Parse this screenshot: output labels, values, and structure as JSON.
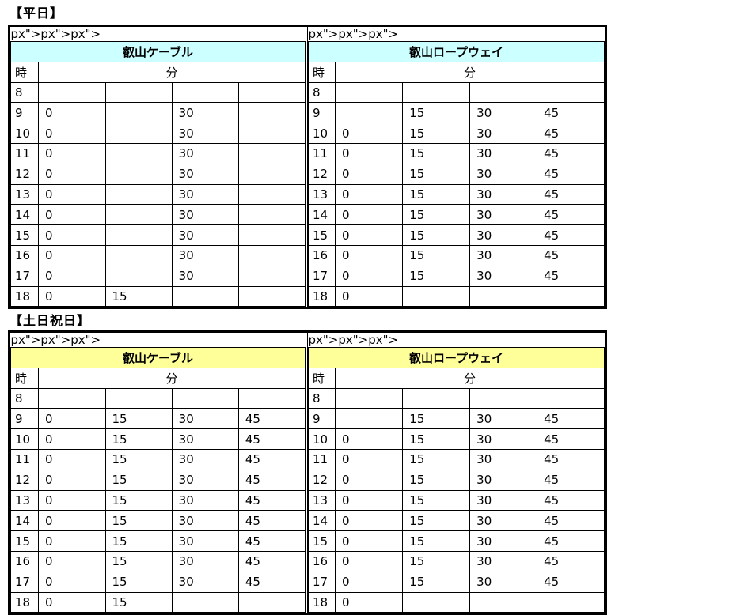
{
  "sections": [
    {
      "title": "【平日】",
      "header_color": "#ccffff",
      "tables": [
        {
          "name": "叡山ケーブル",
          "hour_label": "時",
          "minute_label": "分",
          "rows": [
            {
              "hour": "8",
              "minutes": [
                "",
                "",
                "",
                ""
              ]
            },
            {
              "hour": "9",
              "minutes": [
                "0",
                "",
                "30",
                ""
              ]
            },
            {
              "hour": "10",
              "minutes": [
                "0",
                "",
                "30",
                ""
              ]
            },
            {
              "hour": "11",
              "minutes": [
                "0",
                "",
                "30",
                ""
              ]
            },
            {
              "hour": "12",
              "minutes": [
                "0",
                "",
                "30",
                ""
              ]
            },
            {
              "hour": "13",
              "minutes": [
                "0",
                "",
                "30",
                ""
              ]
            },
            {
              "hour": "14",
              "minutes": [
                "0",
                "",
                "30",
                ""
              ]
            },
            {
              "hour": "15",
              "minutes": [
                "0",
                "",
                "30",
                ""
              ]
            },
            {
              "hour": "16",
              "minutes": [
                "0",
                "",
                "30",
                ""
              ]
            },
            {
              "hour": "17",
              "minutes": [
                "0",
                "",
                "30",
                ""
              ]
            },
            {
              "hour": "18",
              "minutes": [
                "0",
                "15",
                "",
                ""
              ]
            }
          ]
        },
        {
          "name": "叡山ロープウェイ",
          "hour_label": "時",
          "minute_label": "分",
          "rows": [
            {
              "hour": "8",
              "minutes": [
                "",
                "",
                "",
                ""
              ]
            },
            {
              "hour": "9",
              "minutes": [
                "",
                "15",
                "30",
                "45"
              ]
            },
            {
              "hour": "10",
              "minutes": [
                "0",
                "15",
                "30",
                "45"
              ]
            },
            {
              "hour": "11",
              "minutes": [
                "0",
                "15",
                "30",
                "45"
              ]
            },
            {
              "hour": "12",
              "minutes": [
                "0",
                "15",
                "30",
                "45"
              ]
            },
            {
              "hour": "13",
              "minutes": [
                "0",
                "15",
                "30",
                "45"
              ]
            },
            {
              "hour": "14",
              "minutes": [
                "0",
                "15",
                "30",
                "45"
              ]
            },
            {
              "hour": "15",
              "minutes": [
                "0",
                "15",
                "30",
                "45"
              ]
            },
            {
              "hour": "16",
              "minutes": [
                "0",
                "15",
                "30",
                "45"
              ]
            },
            {
              "hour": "17",
              "minutes": [
                "0",
                "15",
                "30",
                "45"
              ]
            },
            {
              "hour": "18",
              "minutes": [
                "0",
                "",
                "",
                ""
              ]
            }
          ]
        }
      ]
    },
    {
      "title": "【土日祝日】",
      "header_color": "#ffff99",
      "tables": [
        {
          "name": "叡山ケーブル",
          "hour_label": "時",
          "minute_label": "分",
          "rows": [
            {
              "hour": "8",
              "minutes": [
                "",
                "",
                "",
                ""
              ]
            },
            {
              "hour": "9",
              "minutes": [
                "0",
                "15",
                "30",
                "45"
              ]
            },
            {
              "hour": "10",
              "minutes": [
                "0",
                "15",
                "30",
                "45"
              ]
            },
            {
              "hour": "11",
              "minutes": [
                "0",
                "15",
                "30",
                "45"
              ]
            },
            {
              "hour": "12",
              "minutes": [
                "0",
                "15",
                "30",
                "45"
              ]
            },
            {
              "hour": "13",
              "minutes": [
                "0",
                "15",
                "30",
                "45"
              ]
            },
            {
              "hour": "14",
              "minutes": [
                "0",
                "15",
                "30",
                "45"
              ]
            },
            {
              "hour": "15",
              "minutes": [
                "0",
                "15",
                "30",
                "45"
              ]
            },
            {
              "hour": "16",
              "minutes": [
                "0",
                "15",
                "30",
                "45"
              ]
            },
            {
              "hour": "17",
              "minutes": [
                "0",
                "15",
                "30",
                "45"
              ]
            },
            {
              "hour": "18",
              "minutes": [
                "0",
                "15",
                "",
                ""
              ]
            }
          ]
        },
        {
          "name": "叡山ロープウェイ",
          "hour_label": "時",
          "minute_label": "分",
          "rows": [
            {
              "hour": "8",
              "minutes": [
                "",
                "",
                "",
                ""
              ]
            },
            {
              "hour": "9",
              "minutes": [
                "",
                "15",
                "30",
                "45"
              ]
            },
            {
              "hour": "10",
              "minutes": [
                "0",
                "15",
                "30",
                "45"
              ]
            },
            {
              "hour": "11",
              "minutes": [
                "0",
                "15",
                "30",
                "45"
              ]
            },
            {
              "hour": "12",
              "minutes": [
                "0",
                "15",
                "30",
                "45"
              ]
            },
            {
              "hour": "13",
              "minutes": [
                "0",
                "15",
                "30",
                "45"
              ]
            },
            {
              "hour": "14",
              "minutes": [
                "0",
                "15",
                "30",
                "45"
              ]
            },
            {
              "hour": "15",
              "minutes": [
                "0",
                "15",
                "30",
                "45"
              ]
            },
            {
              "hour": "16",
              "minutes": [
                "0",
                "15",
                "30",
                "45"
              ]
            },
            {
              "hour": "17",
              "minutes": [
                "0",
                "15",
                "30",
                "45"
              ]
            },
            {
              "hour": "18",
              "minutes": [
                "0",
                "",
                "",
                ""
              ]
            }
          ]
        }
      ]
    }
  ]
}
